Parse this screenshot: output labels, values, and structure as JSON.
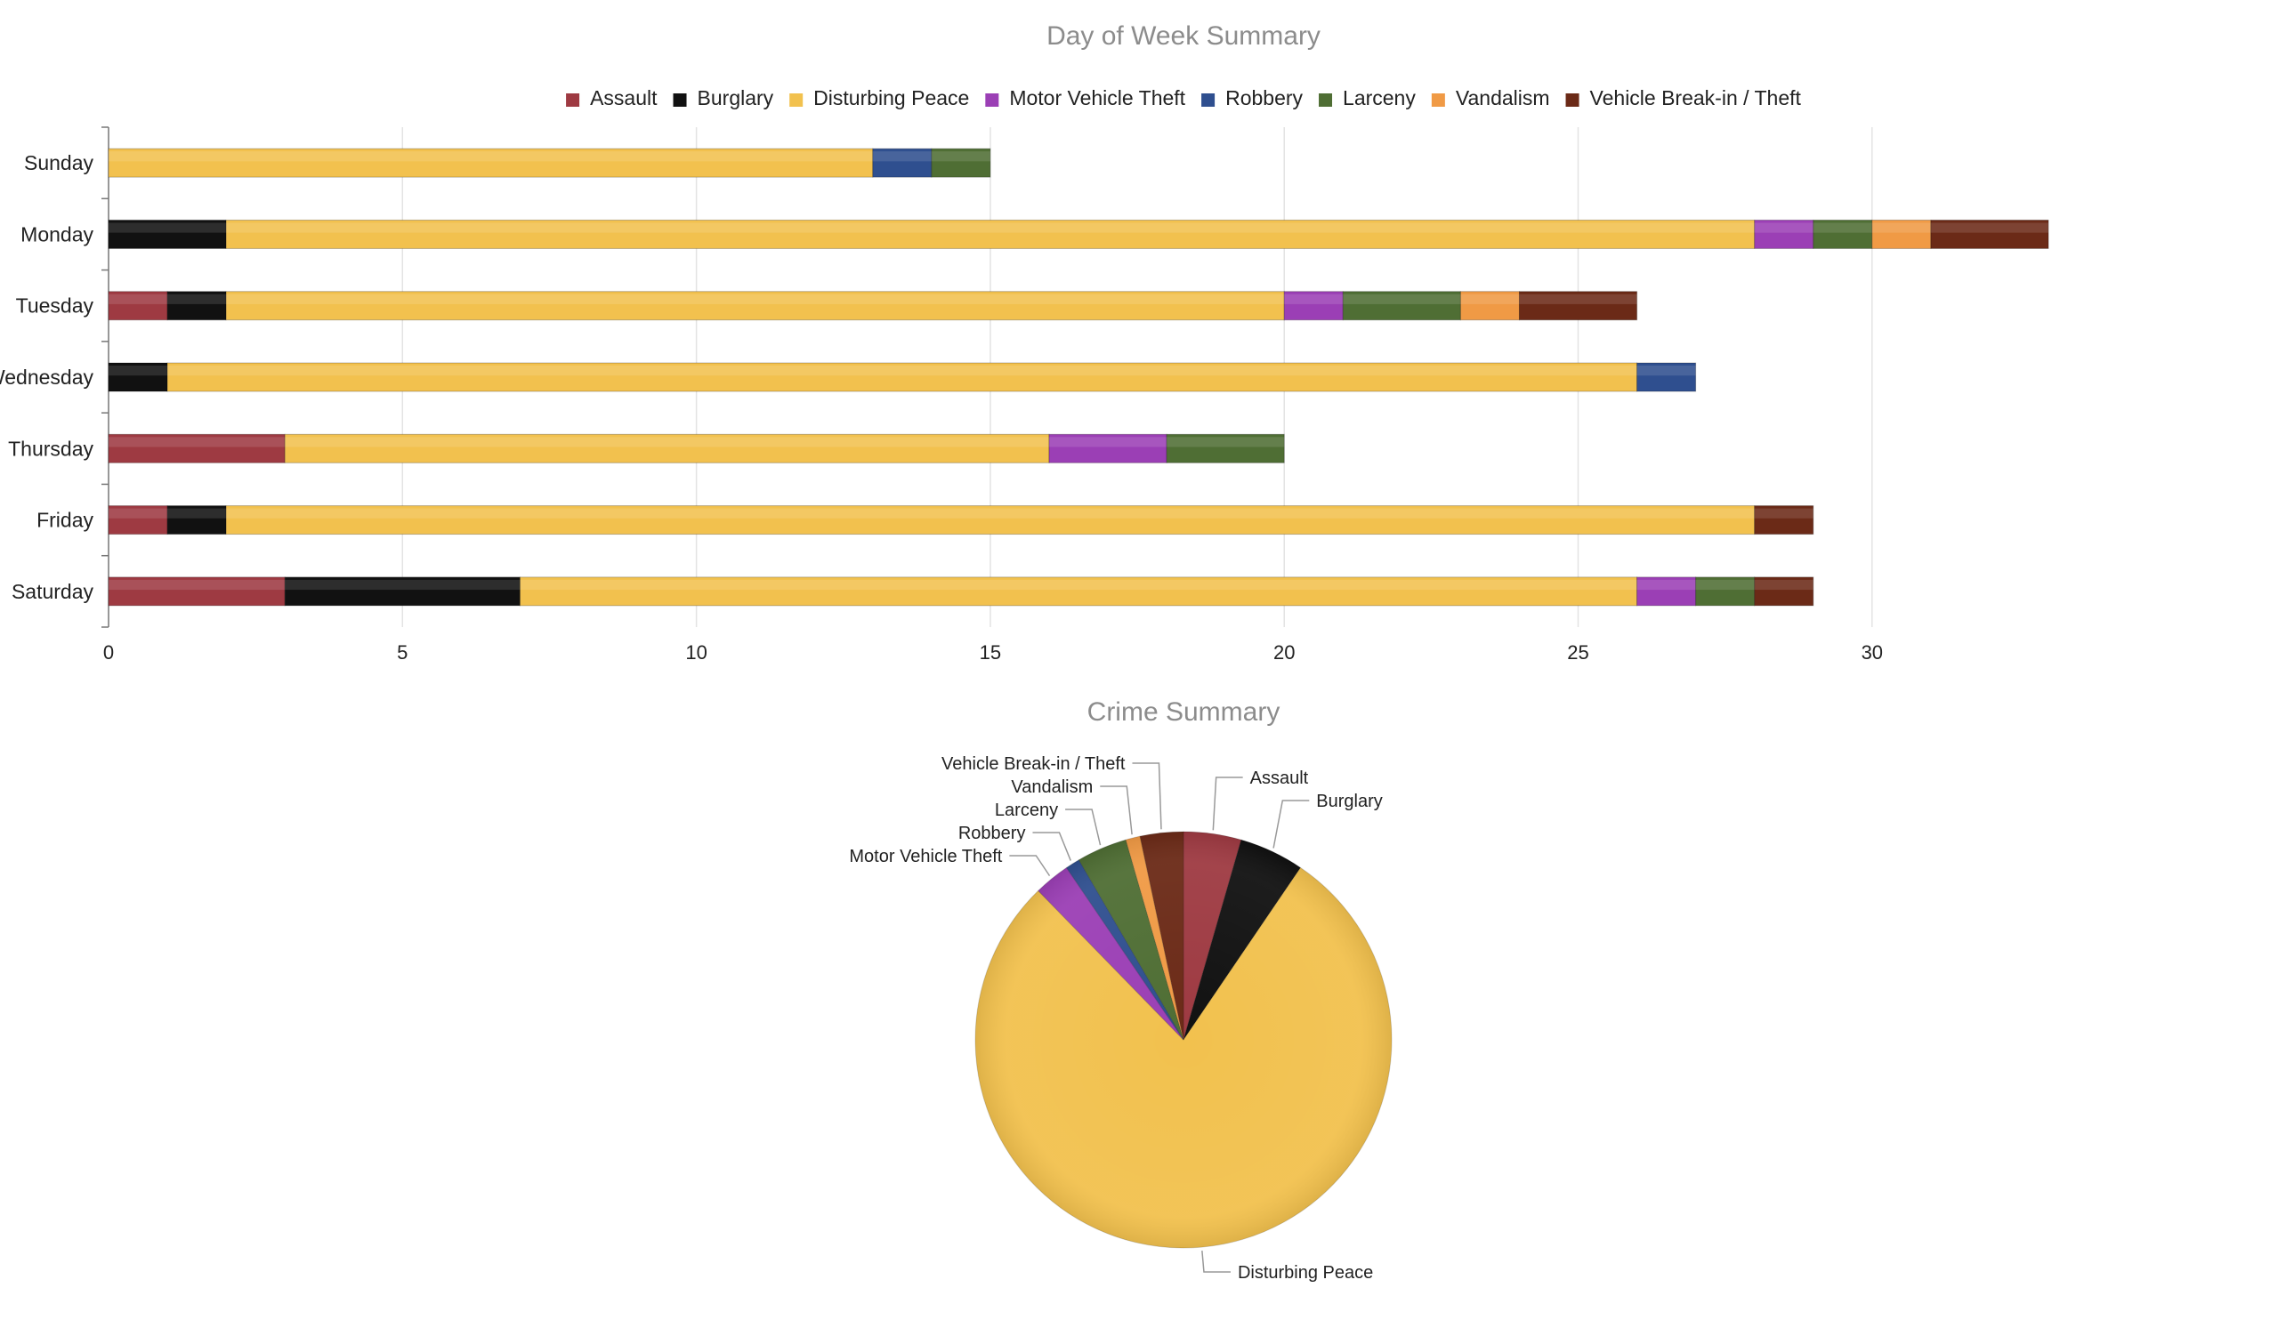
{
  "chart_data": [
    {
      "type": "bar",
      "orientation": "horizontal",
      "stacked": true,
      "title": "Day of Week Summary",
      "categories": [
        "Sunday",
        "Monday",
        "Tuesday",
        "Wednesday",
        "Thursday",
        "Friday",
        "Saturday"
      ],
      "series": [
        {
          "name": "Assault",
          "color": "#9e3a42",
          "values": [
            0,
            0,
            1,
            0,
            3,
            1,
            3
          ]
        },
        {
          "name": "Burglary",
          "color": "#111111",
          "values": [
            0,
            2,
            1,
            1,
            0,
            1,
            4
          ]
        },
        {
          "name": "Disturbing Peace",
          "color": "#f2c14e",
          "values": [
            13,
            26,
            18,
            25,
            13,
            26,
            19
          ]
        },
        {
          "name": "Motor Vehicle Theft",
          "color": "#9b3fb5",
          "values": [
            0,
            1,
            1,
            0,
            2,
            0,
            1
          ]
        },
        {
          "name": "Robbery",
          "color": "#2f4f8f",
          "values": [
            1,
            0,
            0,
            1,
            0,
            0,
            0
          ]
        },
        {
          "name": "Larceny",
          "color": "#4f6e34",
          "values": [
            1,
            1,
            2,
            0,
            2,
            0,
            1
          ]
        },
        {
          "name": "Vandalism",
          "color": "#f09a45",
          "values": [
            0,
            1,
            1,
            0,
            0,
            0,
            0
          ]
        },
        {
          "name": "Vehicle Break-in / Theft",
          "color": "#6b2a17",
          "values": [
            0,
            2,
            2,
            0,
            0,
            1,
            1
          ]
        }
      ],
      "xlim": [
        0,
        33
      ],
      "xticks": [
        0,
        5,
        10,
        15,
        20,
        25,
        30
      ],
      "grid": true,
      "legend": "top"
    },
    {
      "type": "pie",
      "title": "Crime Summary",
      "slices": [
        {
          "name": "Assault",
          "color": "#9e3a42",
          "value": 8
        },
        {
          "name": "Burglary",
          "color": "#111111",
          "value": 9
        },
        {
          "name": "Disturbing Peace",
          "color": "#f2c14e",
          "value": 140
        },
        {
          "name": "Motor Vehicle Theft",
          "color": "#9b3fb5",
          "value": 5
        },
        {
          "name": "Robbery",
          "color": "#2f4f8f",
          "value": 2
        },
        {
          "name": "Larceny",
          "color": "#4f6e34",
          "value": 7
        },
        {
          "name": "Vandalism",
          "color": "#f09a45",
          "value": 2
        },
        {
          "name": "Vehicle Break-in / Theft",
          "color": "#6b2a17",
          "value": 6
        }
      ]
    }
  ]
}
